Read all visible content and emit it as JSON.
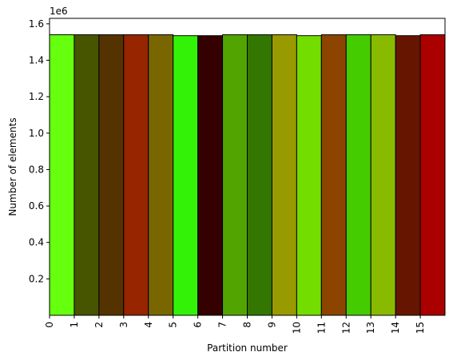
{
  "chart_data": {
    "type": "bar",
    "xlabel": "Partition number",
    "ylabel": "Number of elements",
    "y_offset_label": "1e6",
    "xlim": [
      0,
      16
    ],
    "ylim": [
      0,
      1.63
    ],
    "x_ticks": [
      "0",
      "1",
      "2",
      "3",
      "4",
      "5",
      "6",
      "7",
      "8",
      "9",
      "10",
      "11",
      "12",
      "13",
      "14",
      "15"
    ],
    "y_ticks": [
      "0.2",
      "0.4",
      "0.6",
      "0.8",
      "1.0",
      "1.2",
      "1.4",
      "1.6"
    ],
    "y_tick_values": [
      0.2,
      0.4,
      0.6,
      0.8,
      1.0,
      1.2,
      1.4,
      1.6
    ],
    "categories": [
      "0",
      "1",
      "2",
      "3",
      "4",
      "5",
      "6",
      "7",
      "8",
      "9",
      "10",
      "11",
      "12",
      "13",
      "14",
      "15"
    ],
    "values": [
      1.54,
      1.54,
      1.54,
      1.54,
      1.54,
      1.535,
      1.535,
      1.54,
      1.54,
      1.54,
      1.535,
      1.54,
      1.54,
      1.54,
      1.535,
      1.54
    ],
    "colors": [
      "#66ff0d",
      "#475500",
      "#553300",
      "#962500",
      "#7a6600",
      "#33f207",
      "#340000",
      "#52a500",
      "#337700",
      "#999900",
      "#73dd00",
      "#8c4400",
      "#44cc00",
      "#88bb00",
      "#661500",
      "#aa0000"
    ]
  }
}
